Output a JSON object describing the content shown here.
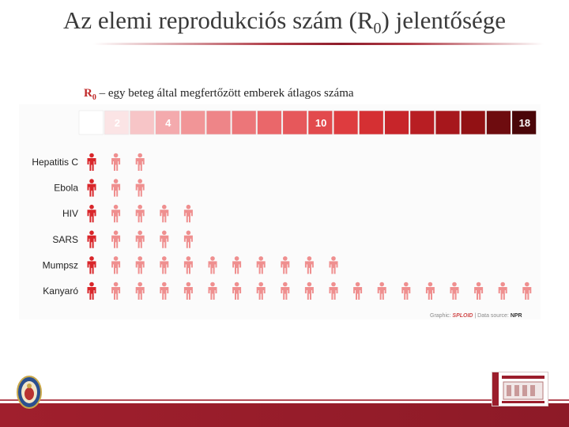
{
  "slide": {
    "title_main": "Az elemi reprodukciós szám (R",
    "title_sub": "0",
    "title_end": ") jelentősége",
    "subtitle_r": "R",
    "subtitle_sub": "0",
    "subtitle_rest": " – egy beteg által megfertőzött emberek átlagos száma"
  },
  "credit": {
    "graphic_label": "Graphic: ",
    "brand": "SPLOID",
    "source_label": " | Data source: ",
    "source": "NPR"
  },
  "colors": {
    "patient_icon": "#d9262a",
    "infected_icon": "#ef8f8f",
    "footer": "#9b1d2b"
  },
  "chart_data": {
    "type": "pictogram",
    "title": "",
    "scale": {
      "min": 1,
      "max": 18,
      "tick_labels": [
        {
          "value": 2,
          "label": "2"
        },
        {
          "value": 4,
          "label": "4"
        },
        {
          "value": 10,
          "label": "10"
        },
        {
          "value": 18,
          "label": "18"
        }
      ],
      "colors": [
        "#ffffff",
        "#fbe4e5",
        "#f7c5c7",
        "#f4aaad",
        "#f19597",
        "#ee8588",
        "#ec7679",
        "#ea676a",
        "#e6585b",
        "#e24a4d",
        "#de3c3f",
        "#d53033",
        "#c7252a",
        "#b81e23",
        "#a7171c",
        "#921114",
        "#6e0c0f",
        "#4a0608"
      ]
    },
    "categories": [
      "Hepatitis C",
      "Ebola",
      "HIV",
      "SARS",
      "Mumpsz",
      "Kanyaró"
    ],
    "values": [
      2,
      2,
      4,
      4,
      10,
      18
    ]
  }
}
